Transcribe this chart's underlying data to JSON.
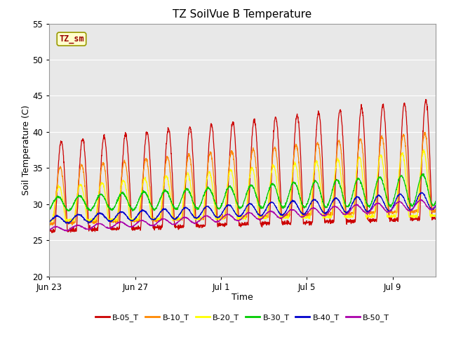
{
  "title": "TZ SoilVue B Temperature",
  "xlabel": "Time",
  "ylabel": "Soil Temperature (C)",
  "ylim": [
    20,
    55
  ],
  "background_color": "#ffffff",
  "plot_bg_color": "#e8e8e8",
  "grid_color": "#ffffff",
  "annotation_text": "TZ_sm",
  "annotation_bg": "#ffffcc",
  "annotation_border": "#999900",
  "annotation_color": "#990000",
  "series_names": [
    "B-05_T",
    "B-10_T",
    "B-20_T",
    "B-30_T",
    "B-40_T",
    "B-50_T"
  ],
  "series_colors": [
    "#cc0000",
    "#ff8800",
    "#ffff00",
    "#00cc00",
    "#0000cc",
    "#aa00aa"
  ],
  "xtick_positions": [
    0,
    4,
    8,
    12,
    16
  ],
  "xtick_labels": [
    "Jun 23",
    "Jun 27",
    "Jul 1",
    "Jul 5",
    "Jul 9"
  ],
  "ytick_positions": [
    20,
    25,
    30,
    35,
    40,
    45,
    50,
    55
  ],
  "n_points": 2000,
  "days": 18
}
